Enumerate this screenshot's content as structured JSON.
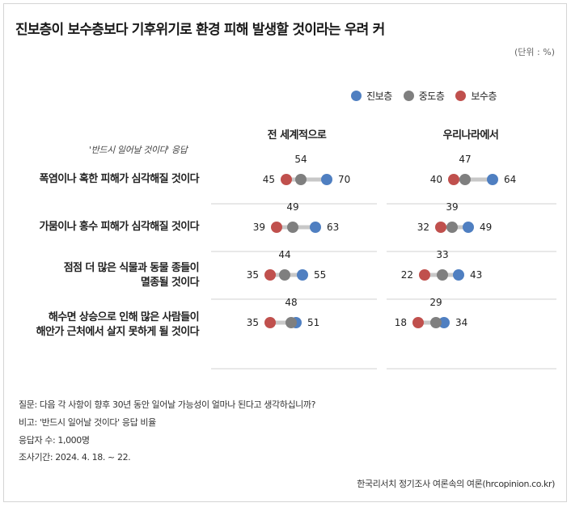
{
  "title": "진보층이 보수층보다 기후위기로 환경 피해 발생할 것이라는 우려 커",
  "unit_note": "(단위 : %)",
  "legend": [
    {
      "label": "진보층",
      "color": "#4f7fc1"
    },
    {
      "label": "중도층",
      "color": "#7f7f7f"
    },
    {
      "label": "보수층",
      "color": "#c0504d"
    }
  ],
  "note": "'반드시 일어날 것이다' 응답",
  "panels": [
    "전 세계적으로",
    "우리나라에서"
  ],
  "rows": [
    [
      "폭염이나 혹한 피해가 심각해질 것이다"
    ],
    [
      "가뭄이나 홍수 피해가 심각해질 것이다"
    ],
    [
      "점점 더 많은 식물과 동물 종들이",
      "멸종될 것이다"
    ],
    [
      "해수면 상승으로 인해 많은 사람들이",
      "해안가 근처에서 살지 못하게 될 것이다"
    ]
  ],
  "chart_data": {
    "type": "dot",
    "categories": [
      "폭염이나 혹한 피해가 심각해질 것이다",
      "가뭄이나 홍수 피해가 심각해질 것이다",
      "점점 더 많은 식물과 동물 종들이 멸종될 것이다",
      "해수면 상승으로 인해 많은 사람들이 해안가 근처에서 살지 못하게 될 것이다"
    ],
    "panels": [
      {
        "name": "전 세계적으로",
        "series": [
          {
            "name": "진보층",
            "values": [
              70,
              63,
              55,
              51
            ]
          },
          {
            "name": "중도층",
            "values": [
              54,
              49,
              44,
              48
            ]
          },
          {
            "name": "보수층",
            "values": [
              45,
              39,
              35,
              35
            ]
          }
        ]
      },
      {
        "name": "우리나라에서",
        "series": [
          {
            "name": "진보층",
            "values": [
              64,
              49,
              43,
              34
            ]
          },
          {
            "name": "중도층",
            "values": [
              47,
              39,
              33,
              29
            ]
          },
          {
            "name": "보수층",
            "values": [
              40,
              32,
              22,
              18
            ]
          }
        ]
      }
    ],
    "colors": {
      "진보층": "#4f7fc1",
      "중도층": "#7f7f7f",
      "보수층": "#c0504d"
    },
    "connector_color": "#c8c8c8"
  },
  "footer": {
    "question": "질문: 다음 각 사항이 향후 30년 동안 일어날 가능성이 얼마나 된다고 생각하십니까?",
    "note": "비고: '반드시 일어날 것이다' 응답 비율",
    "respondents": "응답자 수: 1,000명",
    "period": "조사기간: 2024. 4. 18. ~ 22."
  },
  "source": "한국리서치 정기조사 여론속의 여론(hrcopinion.co.kr)"
}
